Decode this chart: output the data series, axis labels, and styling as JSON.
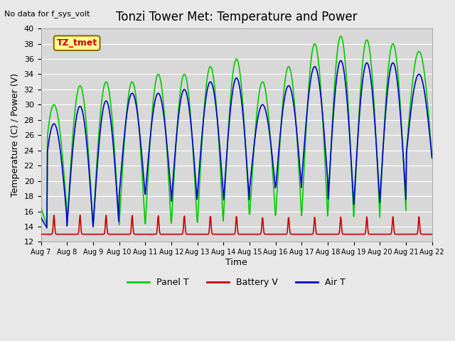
{
  "title": "Tonzi Tower Met: Temperature and Power",
  "top_left_text": "No data for f_sys_volt",
  "ylabel": "Temperature (C) / Power (V)",
  "xlabel": "Time",
  "ylim": [
    12,
    40
  ],
  "yticks": [
    12,
    14,
    16,
    18,
    20,
    22,
    24,
    26,
    28,
    30,
    32,
    34,
    36,
    38,
    40
  ],
  "x_tick_labels": [
    "Aug 7",
    "Aug 8",
    "Aug 9",
    "Aug 10",
    "Aug 11",
    "Aug 12",
    "Aug 13",
    "Aug 14",
    "Aug 15",
    "Aug 16",
    "Aug 17",
    "Aug 18",
    "Aug 19",
    "Aug 20",
    "Aug 21",
    "Aug 22"
  ],
  "annotation_label": "TZ_tmet",
  "annotation_color": "#cc0000",
  "annotation_bg": "#ffff99",
  "panel_color": "#00cc00",
  "battery_color": "#cc0000",
  "air_color": "#0000cc",
  "background_color": "#e8e8e8",
  "plot_bg_color": "#d8d8d8",
  "grid_color": "#ffffff",
  "legend_labels": [
    "Panel T",
    "Battery V",
    "Air T"
  ],
  "n_days": 15,
  "battery_base": 13.0,
  "panel_peaks": [
    30,
    32.5,
    33,
    33,
    34,
    34,
    35,
    36,
    33,
    35,
    38,
    39,
    38.5,
    38,
    37
  ],
  "panel_mins": [
    16,
    14,
    14,
    14,
    14,
    14,
    14,
    15,
    15,
    15,
    15,
    15,
    15,
    16,
    23
  ],
  "air_peaks": [
    27.5,
    29.8,
    30.5,
    31.5,
    31.5,
    32,
    33,
    33.5,
    30,
    32.5,
    35,
    35.8,
    35.5,
    35.5,
    34
  ],
  "air_mins": [
    15,
    14,
    13.8,
    18,
    18,
    17,
    18,
    17,
    18.8,
    18.8,
    20,
    16.7,
    17,
    17.5,
    23
  ],
  "battery_peaks": [
    15.5,
    15.5,
    15.5,
    15.5,
    15.5,
    15.5,
    15.5,
    15.5,
    15.3,
    15.3,
    15.3,
    15.3,
    15.3,
    15.3,
    15.3
  ]
}
